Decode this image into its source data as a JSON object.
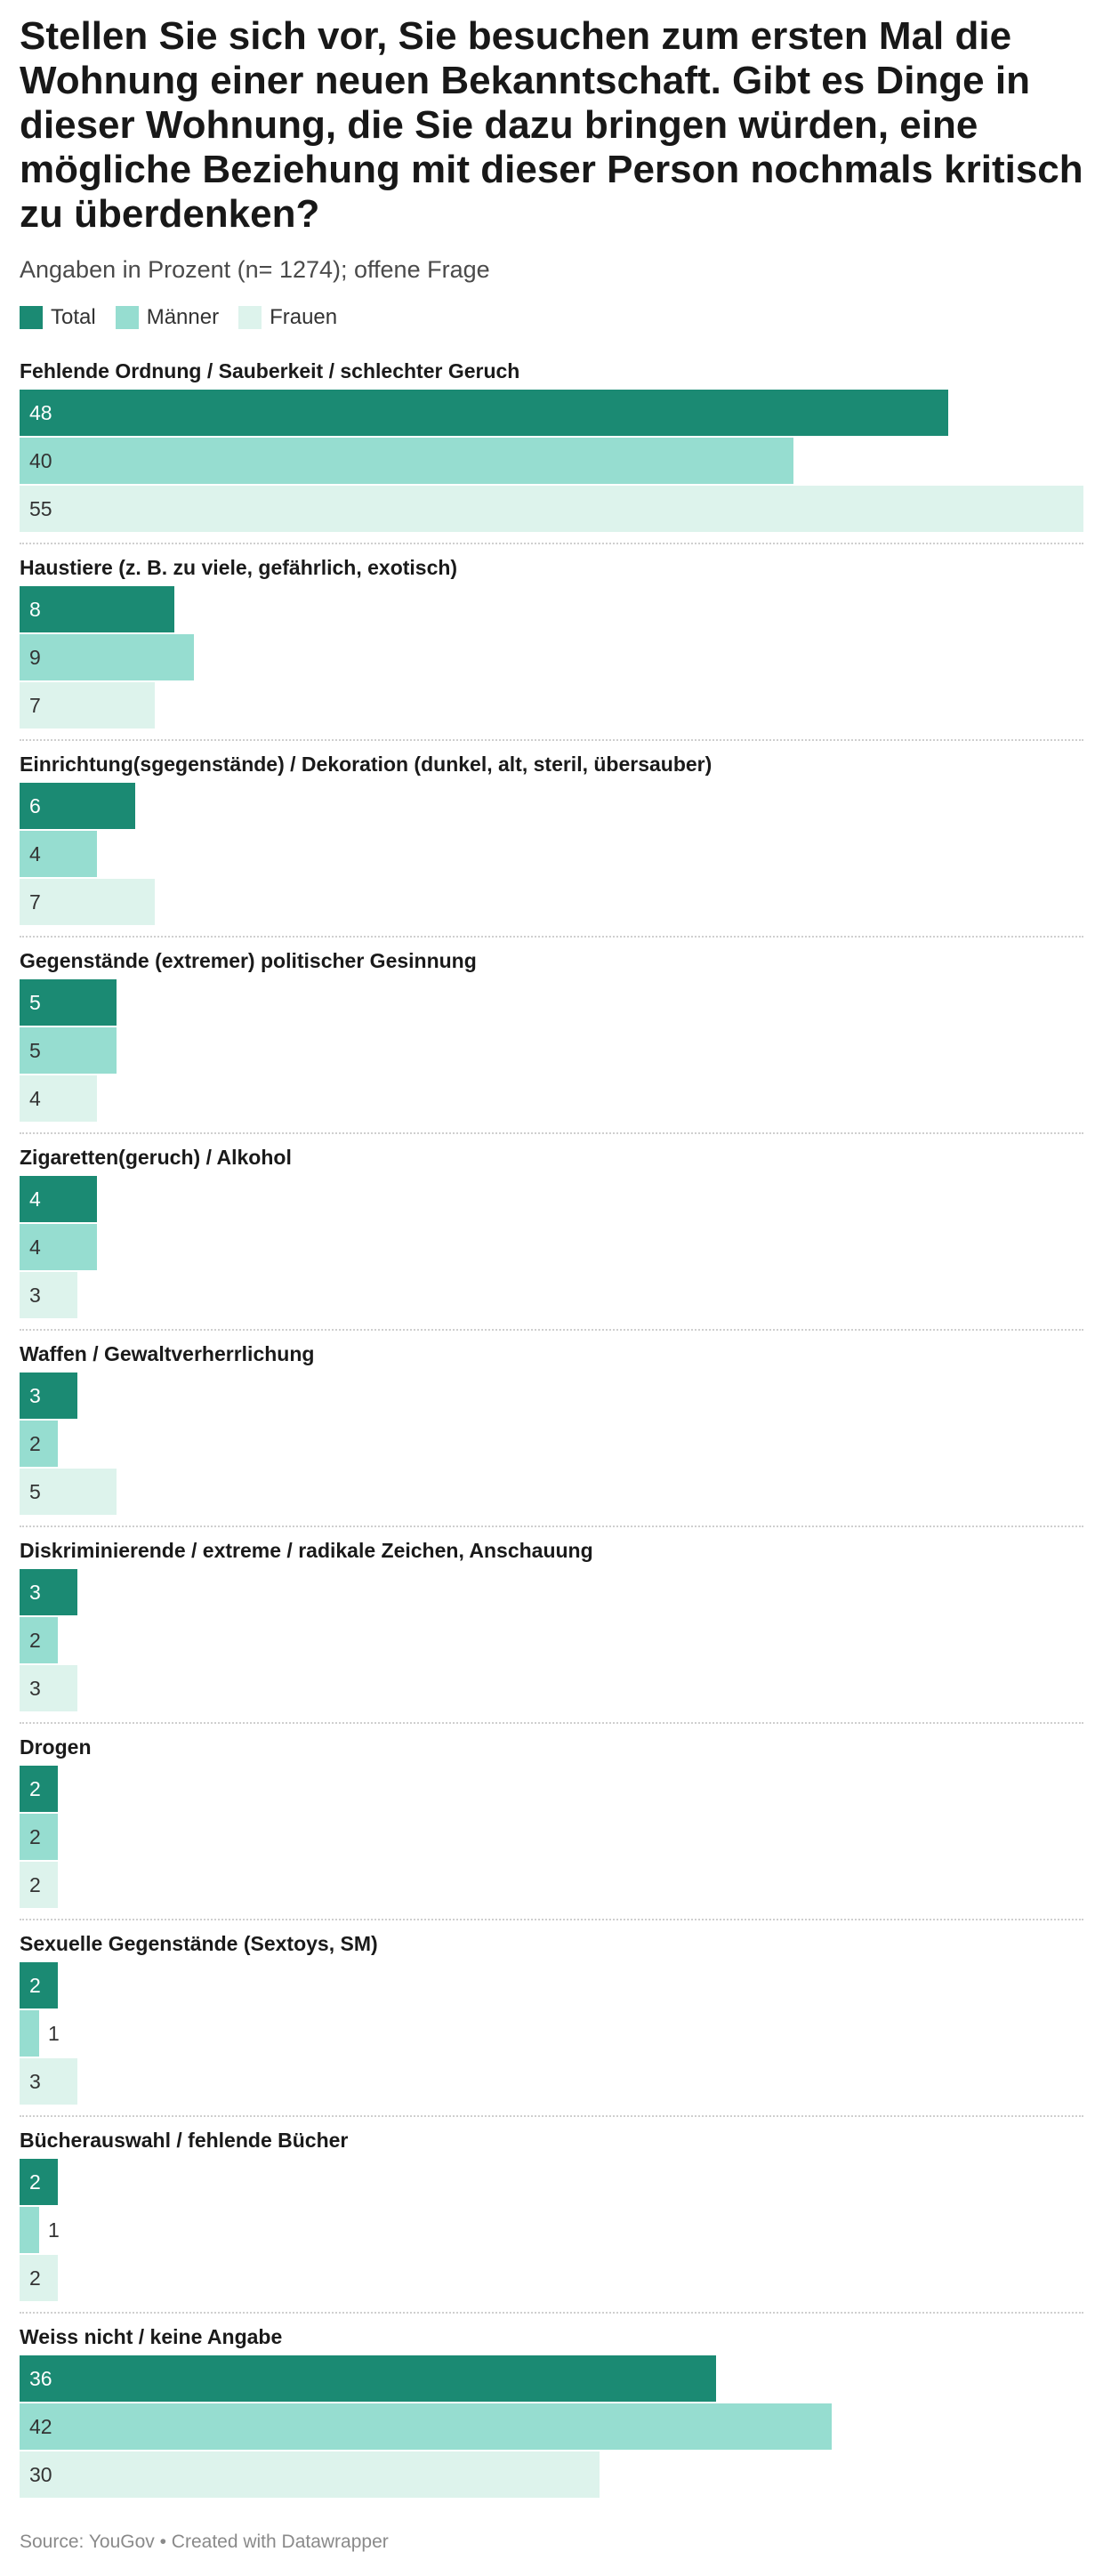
{
  "header": {
    "title": "Stellen Sie sich vor, Sie besuchen zum ersten Mal die Wohnung einer neuen Bekanntschaft. Gibt es Dinge in dieser Wohnung, die Sie dazu bringen würden, eine mögliche Beziehung mit dieser Person nochmals kritisch zu überdenken?",
    "subtitle": "Angaben in Prozent (n= 1274); offene Frage"
  },
  "footer": {
    "text": "Source: YouGov • Created with Datawrapper"
  },
  "colors": {
    "total": "#1b8a73",
    "maenner": "#96ddd0",
    "frauen": "#ddf3ec",
    "label_on_dark": "#ffffff",
    "label_on_light": "#333333"
  },
  "chart_data": {
    "type": "bar",
    "orientation": "horizontal",
    "grouped": true,
    "xlim": [
      0,
      55
    ],
    "legend_position": "top-left",
    "series": [
      {
        "name": "Total",
        "values": [
          48,
          8,
          6,
          5,
          4,
          3,
          3,
          2,
          2,
          2,
          36
        ]
      },
      {
        "name": "Männer",
        "values": [
          40,
          9,
          4,
          5,
          4,
          2,
          2,
          2,
          1,
          1,
          42
        ]
      },
      {
        "name": "Frauen",
        "values": [
          55,
          7,
          7,
          4,
          3,
          5,
          3,
          2,
          3,
          2,
          30
        ]
      }
    ],
    "categories": [
      "Fehlende Ordnung / Sauberkeit / schlechter Geruch",
      "Haustiere (z. B. zu viele, gefährlich, exotisch)",
      "Einrichtung(sgegenstände) / Dekoration (dunkel, alt, steril, übersauber)",
      "Gegenstände (extremer) politischer Gesinnung",
      "Zigaretten(geruch) / Alkohol",
      "Waffen / Gewaltverherrlichung",
      "Diskriminierende / extreme / radikale Zeichen, Anschauung",
      "Drogen",
      "Sexuelle Gegenstände (Sextoys, SM)",
      "Bücherauswahl / fehlende Bücher",
      "Weiss nicht / keine Angabe"
    ]
  }
}
